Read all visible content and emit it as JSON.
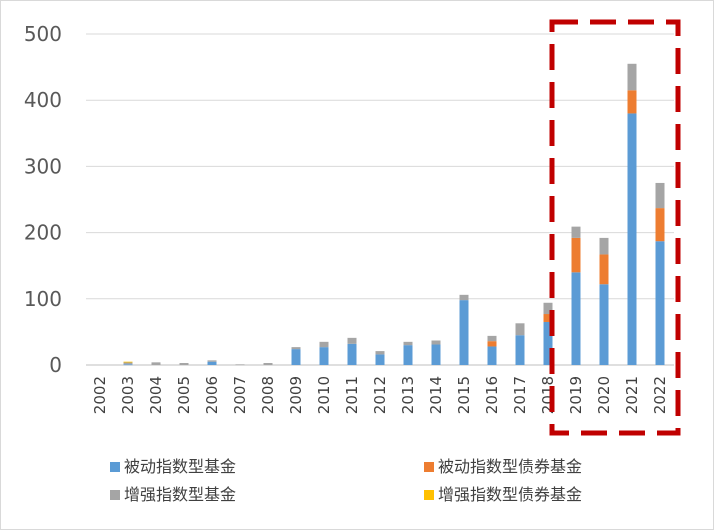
{
  "chart_data": {
    "type": "bar",
    "stacked": true,
    "categories": [
      "2002",
      "2003",
      "2004",
      "2005",
      "2006",
      "2007",
      "2008",
      "2009",
      "2010",
      "2011",
      "2012",
      "2013",
      "2014",
      "2015",
      "2016",
      "2017",
      "2018",
      "2019",
      "2020",
      "2021",
      "2022"
    ],
    "series": [
      {
        "name": "被动指数型基金",
        "color": "#5b9bd5",
        "values": [
          0,
          1,
          0,
          0,
          5,
          0,
          0,
          24,
          27,
          32,
          16,
          30,
          31,
          98,
          28,
          45,
          65,
          140,
          122,
          380,
          187
        ]
      },
      {
        "name": "被动指数型债券基金",
        "color": "#ed7d31",
        "values": [
          0,
          0,
          0,
          0,
          0,
          0,
          0,
          0,
          0,
          0,
          0,
          0,
          0,
          0,
          8,
          0,
          12,
          52,
          45,
          35,
          50
        ]
      },
      {
        "name": "增强指数型基金",
        "color": "#a5a5a5",
        "values": [
          0,
          3,
          4,
          3,
          2,
          1,
          3,
          3,
          8,
          9,
          5,
          5,
          6,
          8,
          8,
          18,
          17,
          17,
          25,
          40,
          38
        ]
      },
      {
        "name": "增强指数型债券基金",
        "color": "#ffc000",
        "values": [
          0,
          1,
          0,
          0,
          0,
          0,
          0,
          0,
          0,
          0,
          0,
          0,
          0,
          0,
          0,
          0,
          0,
          0,
          0,
          0,
          0
        ]
      }
    ],
    "ylim": [
      0,
      500
    ],
    "yticks": [
      "0",
      "100",
      "200",
      "300",
      "400",
      "500"
    ],
    "grid": true,
    "legend_position": "bottom",
    "highlight": {
      "categories": [
        "2019",
        "2020",
        "2021",
        "2022"
      ],
      "style": "dashed-red-box",
      "color": "#c00000"
    }
  }
}
